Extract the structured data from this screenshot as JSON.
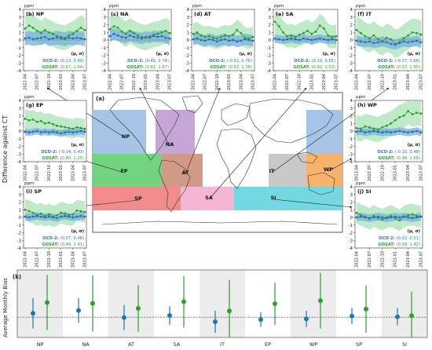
{
  "figure": {
    "y_axis_title": "Difference against CT",
    "unit": "ppm",
    "legend_header": "(μ, σ)",
    "oco2_prefix": "OCO-2:",
    "gosat_prefix": "GOSAT:",
    "map_label": "(a)",
    "bottom_label": "(k)",
    "bottom_ylabel": "Average Monthly Bias",
    "colors": {
      "oco2": "#1f77b4",
      "gosat": "#2ca02c",
      "oco2_band": "#7fb3dd",
      "gosat_band": "#a8e3b5",
      "ocean": "#ffffff",
      "NP": "#a6c4e6",
      "NA": "#c6a6d6",
      "EP": "#72d47e",
      "AT": "#d29a86",
      "SA": "#f5b5d4",
      "IT": "#c8c8c8",
      "WP": "#f7b26b",
      "SP": "#f28b8b",
      "SI": "#74d8e2"
    }
  },
  "chart_data": [
    {
      "type": "line",
      "panel": "(b) NP",
      "region": "NP",
      "x": [
        "2022-04",
        "2022-05",
        "2022-06",
        "2022-07",
        "2022-08",
        "2022-09",
        "2022-10",
        "2022-11",
        "2022-12",
        "2023-01",
        "2023-02",
        "2023-03",
        "2023-04",
        "2023-05",
        "2023-06",
        "2023-07"
      ],
      "ylim": [
        -4,
        4
      ],
      "yticks": [
        -4,
        -3,
        -2,
        -1,
        0,
        1,
        2,
        3,
        4
      ],
      "xticks": [
        "2022-04",
        "2022-07",
        "2022-10",
        "2023-01",
        "2023-04",
        "2023-07"
      ],
      "series": [
        {
          "name": "OCO-2",
          "mu": "0.23",
          "sigma": "0.90",
          "values": [
            0.2,
            0.3,
            0.1,
            0.2,
            0.3,
            0.4,
            0.1,
            0.2,
            0.3,
            0.2,
            0.1,
            0.3,
            0.2,
            0.3,
            0.2,
            0.1
          ]
        },
        {
          "name": "GOSAT",
          "mu": "0.87",
          "sigma": "1.64",
          "values": [
            1.5,
            1.9,
            1.6,
            1.2,
            0.9,
            1.3,
            1.0,
            0.8,
            0.5,
            0.4,
            0.3,
            0.6,
            0.8,
            1.2,
            1.6,
            1.3
          ]
        }
      ]
    },
    {
      "type": "line",
      "panel": "(c) NA",
      "region": "NA",
      "x": [
        "2022-04",
        "2022-05",
        "2022-06",
        "2022-07",
        "2022-08",
        "2022-09",
        "2022-10",
        "2022-11",
        "2022-12",
        "2023-01",
        "2023-02",
        "2023-03",
        "2023-04",
        "2023-05",
        "2023-06",
        "2023-07"
      ],
      "ylim": [
        -4,
        4
      ],
      "yticks": [
        -4,
        -3,
        -2,
        -1,
        0,
        1,
        2,
        3,
        4
      ],
      "xticks": [
        "2022-04",
        "2022-07",
        "2022-10",
        "2023-01",
        "2023-04",
        "2023-07"
      ],
      "series": [
        {
          "name": "OCO-2",
          "mu": "0.40",
          "sigma": "0.74",
          "values": [
            0.5,
            0.8,
            0.6,
            0.4,
            0.3,
            0.6,
            0.4,
            0.3,
            0.2,
            0.4,
            0.3,
            0.5,
            0.4,
            0.5,
            0.3,
            0.2
          ]
        },
        {
          "name": "GOSAT",
          "mu": "0.82",
          "sigma": "1.67",
          "values": [
            1.4,
            1.8,
            1.6,
            1.1,
            0.8,
            1.2,
            0.9,
            0.6,
            0.4,
            0.3,
            0.5,
            0.7,
            0.8,
            1.0,
            1.2,
            0.9
          ]
        }
      ]
    },
    {
      "type": "line",
      "panel": "(d) AT",
      "region": "AT",
      "x": [
        "2022-04",
        "2022-05",
        "2022-06",
        "2022-07",
        "2022-08",
        "2022-09",
        "2022-10",
        "2022-11",
        "2022-12",
        "2023-01",
        "2023-02",
        "2023-03",
        "2023-04",
        "2023-05",
        "2023-06",
        "2023-07"
      ],
      "ylim": [
        -4,
        4
      ],
      "yticks": [
        -4,
        -3,
        -2,
        -1,
        0,
        1,
        2,
        3,
        4
      ],
      "xticks": [
        "2022-04",
        "2022-07",
        "2022-10",
        "2023-01",
        "2023-04",
        "2023-07"
      ],
      "series": [
        {
          "name": "OCO-2",
          "mu": "-0.02",
          "sigma": "0.75",
          "values": [
            0.1,
            0.2,
            0.0,
            -0.1,
            0.1,
            0.0,
            -0.2,
            0.0,
            0.1,
            -0.1,
            0.0,
            -0.2,
            -0.1,
            0.1,
            0.0,
            -0.1
          ]
        },
        {
          "name": "GOSAT",
          "mu": "0.52",
          "sigma": "1.38",
          "values": [
            0.8,
            1.0,
            0.6,
            0.4,
            0.5,
            0.3,
            0.2,
            0.4,
            0.6,
            0.5,
            0.7,
            1.3,
            0.9,
            0.3,
            0.2,
            0.4
          ]
        }
      ]
    },
    {
      "type": "line",
      "panel": "(e) SA",
      "region": "SA",
      "x": [
        "2022-04",
        "2022-05",
        "2022-06",
        "2022-07",
        "2022-08",
        "2022-09",
        "2022-10",
        "2022-11",
        "2022-12",
        "2023-01",
        "2023-02",
        "2023-03",
        "2023-04",
        "2023-05",
        "2023-06",
        "2023-07"
      ],
      "ylim": [
        -4,
        4
      ],
      "yticks": [
        -4,
        -3,
        -2,
        -1,
        0,
        1,
        2,
        3,
        4
      ],
      "xticks": [
        "2022-04",
        "2022-07",
        "2022-10",
        "2023-01",
        "2023-04",
        "2023-07"
      ],
      "series": [
        {
          "name": "OCO-2",
          "mu": "0.10",
          "sigma": "0.55",
          "values": [
            0.2,
            0.1,
            0.0,
            0.1,
            0.2,
            0.1,
            0.0,
            0.2,
            0.1,
            0.0,
            0.1,
            0.2,
            0.1,
            0.0,
            0.1,
            0.0
          ]
        },
        {
          "name": "GOSAT",
          "mu": "0.92",
          "sigma": "1.53",
          "values": [
            2.4,
            1.8,
            1.0,
            0.5,
            0.6,
            0.4,
            0.7,
            0.9,
            1.2,
            0.8,
            1.1,
            1.9,
            1.5,
            0.6,
            0.4,
            0.5
          ]
        }
      ]
    },
    {
      "type": "line",
      "panel": "(f) IT",
      "region": "IT",
      "x": [
        "2022-04",
        "2022-05",
        "2022-06",
        "2022-07",
        "2022-08",
        "2022-09",
        "2022-10",
        "2022-11",
        "2022-12",
        "2023-01",
        "2023-02",
        "2023-03",
        "2023-04",
        "2023-05",
        "2023-06",
        "2023-07"
      ],
      "ylim": [
        -4,
        4
      ],
      "yticks": [
        -4,
        -3,
        -2,
        -1,
        0,
        1,
        2,
        3,
        4
      ],
      "xticks": [
        "2022-04",
        "2022-07",
        "2022-10",
        "2023-01",
        "2023-04",
        "2023-07"
      ],
      "series": [
        {
          "name": "OCO-2",
          "mu": "-0.27",
          "sigma": "0.66",
          "values": [
            -0.1,
            -0.2,
            -0.3,
            -0.2,
            -0.4,
            -0.3,
            -0.2,
            -0.3,
            -0.5,
            -0.6,
            -0.4,
            -0.2,
            -0.3,
            -0.2,
            -0.1,
            -0.3
          ]
        },
        {
          "name": "GOSAT",
          "mu": "0.37",
          "sigma": "1.85",
          "values": [
            1.3,
            0.9,
            0.5,
            0.2,
            0.6,
            0.1,
            -0.2,
            0.3,
            0.1,
            -0.5,
            -0.3,
            0.2,
            0.6,
            1.0,
            0.9,
            0.7
          ]
        }
      ]
    },
    {
      "type": "line",
      "panel": "(g) EP",
      "region": "EP",
      "x": [
        "2022-04",
        "2022-05",
        "2022-06",
        "2022-07",
        "2022-08",
        "2022-09",
        "2022-10",
        "2022-11",
        "2022-12",
        "2023-01",
        "2023-02",
        "2023-03",
        "2023-04",
        "2023-05",
        "2023-06",
        "2023-07"
      ],
      "ylim": [
        -4,
        4
      ],
      "yticks": [
        -4,
        -3,
        -2,
        -1,
        0,
        1,
        2,
        3,
        4
      ],
      "xticks": [
        "2022-04",
        "2022-07",
        "2022-10",
        "2023-01",
        "2023-04",
        "2023-07"
      ],
      "series": [
        {
          "name": "OCO-2",
          "mu": "-0.14",
          "sigma": "0.43",
          "values": [
            -0.1,
            -0.2,
            -0.1,
            0.0,
            -0.2,
            -0.1,
            -0.2,
            -0.1,
            -0.2,
            -0.3,
            -0.2,
            -0.1,
            -0.2,
            -0.1,
            0.0,
            -0.1
          ]
        },
        {
          "name": "GOSAT",
          "mu": "0.80",
          "sigma": "1.25",
          "values": [
            1.6,
            1.4,
            1.5,
            1.2,
            1.3,
            1.0,
            1.1,
            0.9,
            0.7,
            0.6,
            0.5,
            0.4,
            0.3,
            0.5,
            0.4,
            0.3
          ]
        }
      ]
    },
    {
      "type": "line",
      "panel": "(h) WP",
      "region": "WP",
      "x": [
        "2022-04",
        "2022-05",
        "2022-06",
        "2022-07",
        "2022-08",
        "2022-09",
        "2022-10",
        "2022-11",
        "2022-12",
        "2023-01",
        "2023-02",
        "2023-03",
        "2023-04",
        "2023-05",
        "2023-06",
        "2023-07"
      ],
      "ylim": [
        -4,
        4
      ],
      "yticks": [
        -4,
        -3,
        -2,
        -1,
        0,
        1,
        2,
        3,
        4
      ],
      "xticks": [
        "2022-04",
        "2022-07",
        "2022-10",
        "2023-01",
        "2023-04",
        "2023-07"
      ],
      "series": [
        {
          "name": "OCO-2",
          "mu": "-0.10",
          "sigma": "0.48",
          "values": [
            -0.1,
            0.0,
            -0.2,
            -0.1,
            0.0,
            -0.1,
            -0.2,
            -0.1,
            -0.2,
            -0.1,
            0.0,
            -0.1,
            -0.2,
            -0.1,
            0.0,
            -0.2
          ]
        },
        {
          "name": "GOSAT",
          "mu": "0.98",
          "sigma": "1.65",
          "values": [
            0.4,
            0.3,
            0.6,
            0.5,
            0.3,
            0.2,
            0.5,
            0.7,
            1.0,
            1.4,
            1.8,
            2.0,
            2.6,
            2.2,
            2.4,
            2.3
          ]
        }
      ]
    },
    {
      "type": "line",
      "panel": "(i) SP",
      "region": "SP",
      "x": [
        "2022-04",
        "2022-05",
        "2022-06",
        "2022-07",
        "2022-08",
        "2022-09",
        "2022-10",
        "2022-11",
        "2022-12",
        "2023-01",
        "2023-02",
        "2023-03",
        "2023-04",
        "2023-05",
        "2023-06",
        "2023-07"
      ],
      "ylim": [
        -4,
        4
      ],
      "yticks": [
        -4,
        -3,
        -2,
        -1,
        0,
        1,
        2,
        3,
        4
      ],
      "xticks": [
        "2022-04",
        "2022-07",
        "2022-10",
        "2023-01",
        "2023-04",
        "2023-07"
      ],
      "series": [
        {
          "name": "OCO-2",
          "mu": "0.07",
          "sigma": "0.48",
          "values": [
            0.1,
            0.0,
            0.1,
            0.2,
            0.1,
            0.0,
            0.1,
            0.0,
            -0.1,
            0.1,
            0.2,
            0.1,
            0.0,
            0.1,
            0.2,
            0.1
          ]
        },
        {
          "name": "GOSAT",
          "mu": "0.48",
          "sigma": "1.41",
          "values": [
            1.0,
            0.8,
            0.6,
            0.3,
            0.5,
            0.2,
            0.4,
            0.1,
            0.3,
            0.6,
            0.5,
            0.3,
            0.4,
            0.9,
            0.8,
            0.7
          ]
        }
      ]
    },
    {
      "type": "line",
      "panel": "(j) SI",
      "region": "SI",
      "x": [
        "2022-04",
        "2022-05",
        "2022-06",
        "2022-07",
        "2022-08",
        "2022-09",
        "2022-10",
        "2022-11",
        "2022-12",
        "2023-01",
        "2023-02",
        "2023-03",
        "2023-04",
        "2023-05",
        "2023-06",
        "2023-07"
      ],
      "ylim": [
        -4,
        4
      ],
      "yticks": [
        -4,
        -3,
        -2,
        -1,
        0,
        1,
        2,
        3,
        4
      ],
      "xticks": [
        "2022-04",
        "2022-07",
        "2022-10",
        "2023-01",
        "2023-04",
        "2023-07"
      ],
      "series": [
        {
          "name": "OCO-2",
          "mu": "0.02",
          "sigma": "0.51",
          "values": [
            0.0,
            0.1,
            0.0,
            -0.1,
            0.0,
            0.1,
            0.0,
            -0.1,
            0.0,
            0.1,
            0.0,
            0.1,
            0.0,
            -0.1,
            0.0,
            0.1
          ]
        },
        {
          "name": "GOSAT",
          "mu": "0.09",
          "sigma": "1.42",
          "values": [
            0.6,
            0.3,
            0.1,
            -0.2,
            0.2,
            -0.1,
            -0.3,
            0.0,
            0.2,
            -0.1,
            -0.4,
            0.1,
            0.3,
            0.4,
            0.2,
            0.1
          ]
        }
      ]
    },
    {
      "type": "scatter",
      "panel": "(k)",
      "ylabel": "Average Monthly Bias",
      "categories": [
        "NP",
        "NA",
        "AT",
        "SA",
        "IT",
        "EP",
        "WP",
        "SP",
        "SI"
      ],
      "shaded_categories": [
        "NP",
        "AT",
        "IT",
        "WP",
        "SI"
      ],
      "error_bars": "±σ",
      "series": [
        {
          "name": "OCO-2",
          "mu": [
            0.23,
            0.4,
            -0.02,
            0.1,
            -0.27,
            -0.14,
            -0.1,
            0.07,
            0.02
          ],
          "sigma": [
            0.9,
            0.74,
            0.75,
            0.55,
            0.66,
            0.43,
            0.48,
            0.48,
            0.51
          ]
        },
        {
          "name": "GOSAT",
          "mu": [
            0.87,
            0.82,
            0.52,
            0.92,
            0.37,
            0.8,
            0.98,
            0.48,
            0.09
          ],
          "sigma": [
            1.64,
            1.67,
            1.38,
            1.53,
            1.85,
            1.25,
            1.65,
            1.41,
            1.42
          ]
        }
      ]
    }
  ]
}
